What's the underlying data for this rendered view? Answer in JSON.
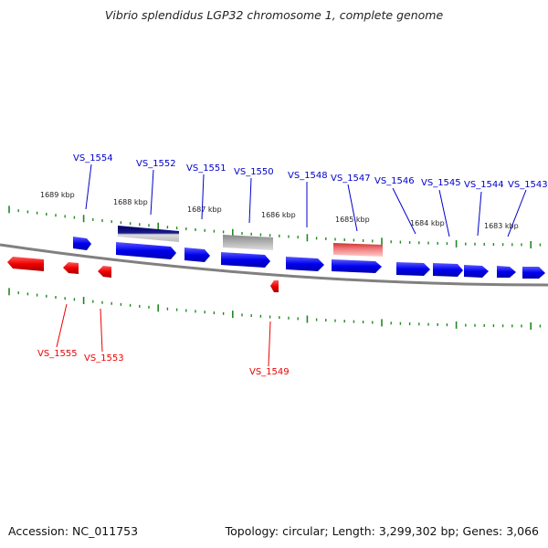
{
  "title": "Vibrio splendidus LGP32 chromosome 1, complete genome",
  "footer": {
    "accession": "Accession: NC_011753",
    "summary": "Topology: circular; Length: 3,299,302 bp; Genes: 3,066"
  },
  "colors": {
    "forward_gene": "#0000ee",
    "reverse_gene": "#ee0000",
    "selected_gene": "#000066",
    "gray_gene": "#999999",
    "pink_gene": "#ee6666",
    "tick": "#228822",
    "backbone": "#888888"
  },
  "ruler_labels": [
    "1689 kbp",
    "1688 kbp",
    "1687 kbp",
    "1686 kbp",
    "1685 kbp",
    "1684 kbp",
    "1683 kbp"
  ],
  "forward_labels": [
    "VS_1554",
    "VS_1552",
    "VS_1551",
    "VS_1550",
    "VS_1548",
    "VS_1547",
    "VS_1546",
    "VS_1545",
    "VS_1544",
    "VS_1543"
  ],
  "reverse_labels": [
    "VS_1555",
    "VS_1553",
    "VS_1549"
  ]
}
